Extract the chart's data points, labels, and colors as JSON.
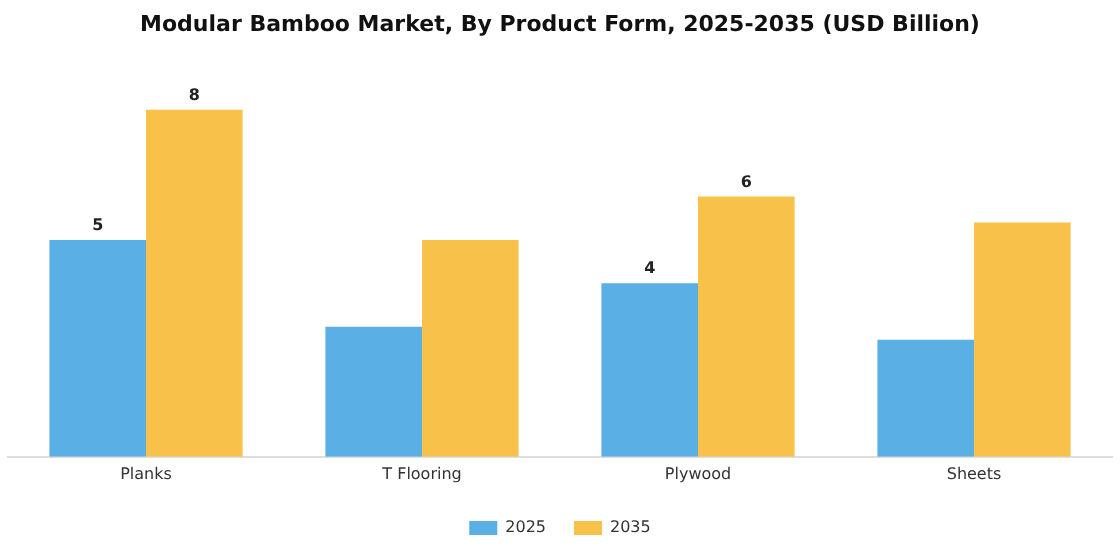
{
  "chart_data": {
    "type": "bar",
    "title": "Modular Bamboo Market, By Product Form, 2025-2035 (USD Billion)",
    "categories": [
      "Planks",
      "T Flooring",
      "Plywood",
      "Sheets"
    ],
    "series": [
      {
        "name": "2025",
        "color": "#5aafe4",
        "values": [
          5,
          3,
          4,
          2.7
        ],
        "value_labels": [
          "5",
          null,
          "4",
          null
        ]
      },
      {
        "name": "2035",
        "color": "#f7c14a",
        "values": [
          8,
          5,
          6,
          5.4
        ],
        "value_labels": [
          "8",
          null,
          "6",
          null
        ]
      }
    ],
    "grid": false,
    "legend": "bottom"
  }
}
